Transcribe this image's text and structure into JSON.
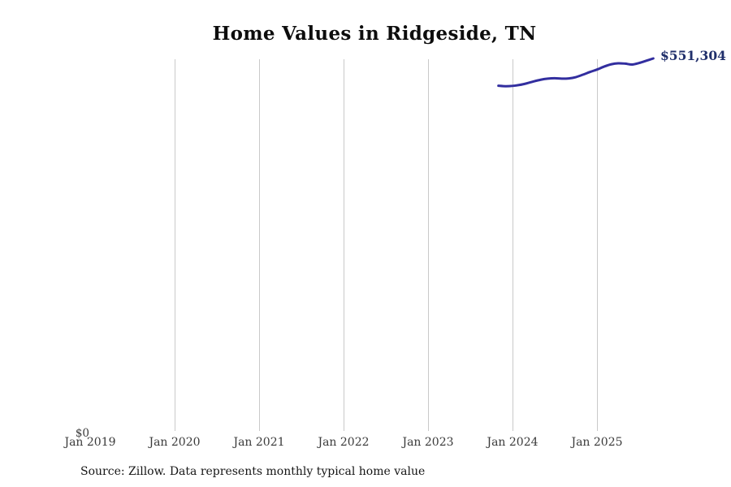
{
  "page": {
    "title": "Home Values in Ridgeside, TN",
    "source_note": "Source: Zillow. Data represents monthly typical home value"
  },
  "axis": {
    "y_zero_label": "$0",
    "x_ticks": [
      {
        "label": "Jan 2019",
        "date": "2019-01",
        "gridline": false
      },
      {
        "label": "Jan 2020",
        "date": "2020-01",
        "gridline": true
      },
      {
        "label": "Jan 2021",
        "date": "2021-01",
        "gridline": true
      },
      {
        "label": "Jan 2022",
        "date": "2022-01",
        "gridline": true
      },
      {
        "label": "Jan 2023",
        "date": "2023-01",
        "gridline": true
      },
      {
        "label": "Jan 2024",
        "date": "2024-01",
        "gridline": true
      },
      {
        "label": "Jan 2025",
        "date": "2025-01",
        "gridline": true
      }
    ]
  },
  "annotation": {
    "end_value_label": "$551,304"
  },
  "colors": {
    "line": "#322e9f",
    "end_label": "#202f6b",
    "gridline": "#c9c9c9",
    "tick_text": "#3a3a3a"
  },
  "chart_data": {
    "type": "line",
    "title": "Home Values in Ridgeside, TN",
    "xlabel": "",
    "ylabel": "",
    "ylim": [
      0,
      551304
    ],
    "grid": "vertical-only",
    "legend": "none",
    "x_tick_labels": [
      "Jan 2019",
      "Jan 2020",
      "Jan 2021",
      "Jan 2022",
      "Jan 2023",
      "Jan 2024",
      "Jan 2025"
    ],
    "y_tick_labels": [
      "$0"
    ],
    "end_annotation": {
      "text": "$551,304",
      "date": "2025-09",
      "value": 551304
    },
    "series": [
      {
        "name": "Monthly typical home value",
        "points": [
          {
            "date": "2023-11",
            "value": 510800
          },
          {
            "date": "2023-12",
            "value": 510100
          },
          {
            "date": "2024-01",
            "value": 510600
          },
          {
            "date": "2024-02",
            "value": 512000
          },
          {
            "date": "2024-03",
            "value": 514300
          },
          {
            "date": "2024-04",
            "value": 517200
          },
          {
            "date": "2024-05",
            "value": 519700
          },
          {
            "date": "2024-06",
            "value": 521300
          },
          {
            "date": "2024-07",
            "value": 521900
          },
          {
            "date": "2024-08",
            "value": 521300
          },
          {
            "date": "2024-09",
            "value": 521700
          },
          {
            "date": "2024-10",
            "value": 523600
          },
          {
            "date": "2024-11",
            "value": 527200
          },
          {
            "date": "2024-12",
            "value": 531200
          },
          {
            "date": "2025-01",
            "value": 534800
          },
          {
            "date": "2025-02",
            "value": 539200
          },
          {
            "date": "2025-03",
            "value": 542600
          },
          {
            "date": "2025-04",
            "value": 544100
          },
          {
            "date": "2025-05",
            "value": 543600
          },
          {
            "date": "2025-06",
            "value": 542300
          },
          {
            "date": "2025-07",
            "value": 544600
          },
          {
            "date": "2025-08",
            "value": 547900
          },
          {
            "date": "2025-09",
            "value": 551304
          }
        ]
      }
    ]
  }
}
